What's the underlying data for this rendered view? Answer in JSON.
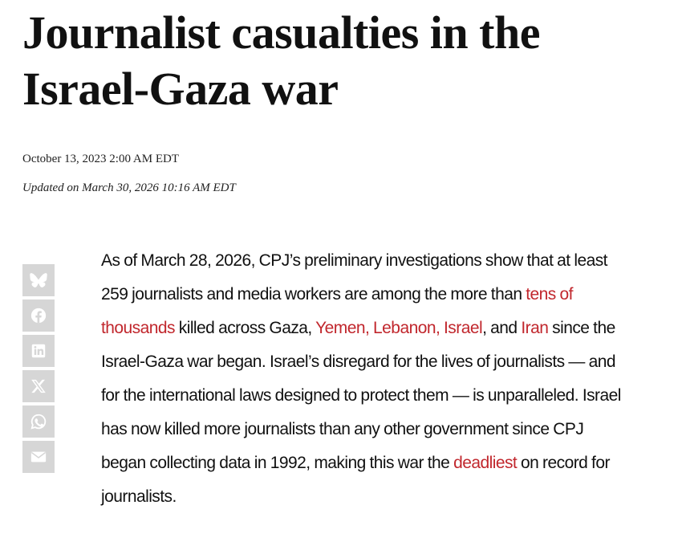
{
  "article": {
    "headline_line1": "Journalist casualties in the",
    "headline_line2": "Israel-Gaza war",
    "published": "October 13, 2023 2:00 AM EDT",
    "updated": "Updated on March 30, 2026 10:16 AM EDT"
  },
  "share": {
    "items": [
      {
        "name": "bluesky",
        "icon": "bluesky-icon"
      },
      {
        "name": "facebook",
        "icon": "facebook-icon"
      },
      {
        "name": "linkedin",
        "icon": "linkedin-icon"
      },
      {
        "name": "x",
        "icon": "x-icon"
      },
      {
        "name": "whatsapp",
        "icon": "whatsapp-icon"
      },
      {
        "name": "email",
        "icon": "email-icon"
      }
    ],
    "button_color": "#d6d6d6",
    "icon_color": "#ffffff"
  },
  "intro": {
    "t1": "As of March 28, 2026, CPJ’s preliminary investigations show that at least 259 journalists and media workers are among the more than ",
    "link1": "tens of thousands",
    "t2": " killed across Gaza, ",
    "link2": "Yemen, Lebanon, Israel",
    "t3": ", and ",
    "link3": "Iran",
    "t4": " since the Israel-Gaza war began. Israel’s disregard for the lives of journalists — and for the international laws designed to protect them — is unparalleled. Israel has now killed more journalists than any other government since CPJ began collecting data in 1992, making this war the ",
    "link4": "deadliest",
    "t5": " on record for journalists."
  },
  "colors": {
    "link": "#c1272d",
    "text": "#111111"
  }
}
